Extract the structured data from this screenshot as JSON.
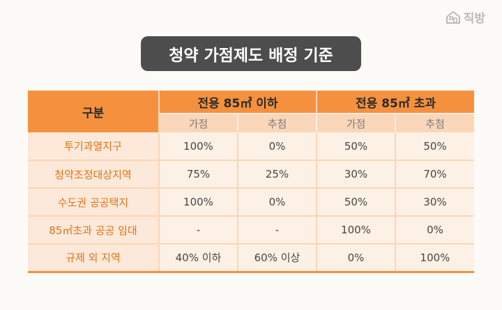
{
  "brand": {
    "name": "직방",
    "logo_icon": "house-icon"
  },
  "title": "청약 가점제도 배정 기준",
  "table": {
    "corner_label": "구분",
    "groups": [
      "전용 85㎡ 이하",
      "전용 85㎡ 초과"
    ],
    "subheaders": [
      "가점",
      "추첨",
      "가점",
      "추첨"
    ],
    "rows": [
      {
        "category": "투기과열지구",
        "values": [
          "100%",
          "0%",
          "50%",
          "50%"
        ]
      },
      {
        "category": "청약조정대상지역",
        "values": [
          "75%",
          "25%",
          "30%",
          "70%"
        ]
      },
      {
        "category": "수도권 공공택지",
        "values": [
          "100%",
          "0%",
          "50%",
          "30%"
        ]
      },
      {
        "category": "85㎡초과 공공 임대",
        "values": [
          "-",
          "-",
          "100%",
          "0%"
        ]
      },
      {
        "category": "규제 외 지역",
        "values": [
          "40% 이하",
          "60% 이상",
          "0%",
          "100%"
        ]
      }
    ]
  },
  "colors": {
    "header": "#f5913e",
    "subheader": "#fbd6b9",
    "category_text": "#e07216",
    "title_bg": "#4d4d4d"
  }
}
